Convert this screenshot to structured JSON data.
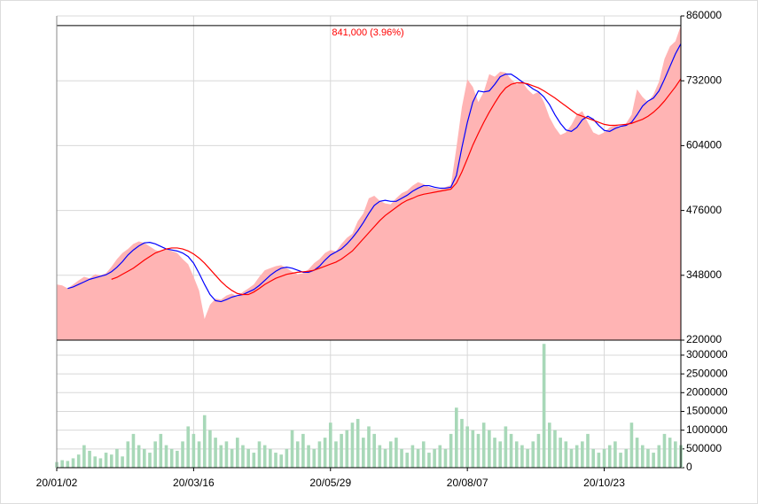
{
  "chart_data": [
    {
      "type": "line",
      "categories": [
        "20/01/02",
        null,
        null,
        null,
        null,
        null,
        null,
        null,
        null,
        null,
        null,
        null,
        null,
        null,
        null,
        null,
        null,
        null,
        null,
        null,
        null,
        null,
        null,
        null,
        null,
        "20/03/16",
        null,
        null,
        null,
        null,
        null,
        null,
        null,
        null,
        null,
        null,
        null,
        null,
        null,
        null,
        null,
        null,
        null,
        null,
        null,
        null,
        null,
        null,
        null,
        null,
        "20/05/29",
        null,
        null,
        null,
        null,
        null,
        null,
        null,
        null,
        null,
        null,
        null,
        null,
        null,
        null,
        null,
        null,
        null,
        null,
        null,
        null,
        null,
        null,
        null,
        null,
        "20/08/07",
        null,
        null,
        null,
        null,
        null,
        null,
        null,
        null,
        null,
        null,
        null,
        null,
        null,
        null,
        null,
        null,
        null,
        null,
        null,
        null,
        null,
        null,
        null,
        null,
        "20/10/23",
        null,
        null,
        null,
        null,
        null,
        null,
        null,
        null,
        null,
        null,
        null,
        null,
        null,
        null
      ],
      "series": [
        {
          "fill": true,
          "color": "#ffb4b4",
          "values": [
            330000,
            328000,
            322000,
            330000,
            338000,
            345000,
            342000,
            350000,
            348000,
            352000,
            365000,
            380000,
            392000,
            400000,
            410000,
            415000,
            412000,
            405000,
            398000,
            395000,
            400000,
            396000,
            392000,
            380000,
            370000,
            345000,
            318000,
            262000,
            290000,
            302000,
            300000,
            308000,
            312000,
            306000,
            315000,
            322000,
            330000,
            345000,
            358000,
            362000,
            366000,
            368000,
            362000,
            355000,
            350000,
            352000,
            360000,
            372000,
            380000,
            392000,
            398000,
            395000,
            410000,
            422000,
            430000,
            455000,
            470000,
            500000,
            505000,
            495000,
            490000,
            488000,
            500000,
            510000,
            515000,
            525000,
            532000,
            528000,
            522000,
            520000,
            518000,
            522000,
            526000,
            600000,
            680000,
            735000,
            720000,
            690000,
            710000,
            745000,
            740000,
            750000,
            748000,
            735000,
            725000,
            730000,
            715000,
            705000,
            710000,
            690000,
            660000,
            640000,
            625000,
            630000,
            645000,
            665000,
            672000,
            650000,
            630000,
            625000,
            630000,
            640000,
            645000,
            640000,
            648000,
            665000,
            715000,
            700000,
            690000,
            705000,
            730000,
            775000,
            800000,
            810000,
            841000
          ]
        },
        {
          "color": "#0000ff",
          "values": [
            null,
            null,
            322000,
            325000,
            330000,
            335000,
            340000,
            343000,
            346000,
            349000,
            355000,
            364000,
            375000,
            388000,
            398000,
            406000,
            412000,
            413000,
            410000,
            405000,
            400000,
            398000,
            396000,
            392000,
            385000,
            372000,
            352000,
            330000,
            310000,
            298000,
            296000,
            300000,
            305000,
            308000,
            310000,
            315000,
            320000,
            328000,
            338000,
            348000,
            356000,
            362000,
            364000,
            362000,
            358000,
            354000,
            354000,
            358000,
            366000,
            378000,
            388000,
            394000,
            400000,
            410000,
            422000,
            436000,
            452000,
            470000,
            486000,
            494000,
            496000,
            494000,
            494000,
            500000,
            506000,
            514000,
            520000,
            525000,
            525000,
            522000,
            520000,
            520000,
            522000,
            545000,
            600000,
            650000,
            690000,
            712000,
            710000,
            712000,
            725000,
            740000,
            745000,
            745000,
            738000,
            730000,
            724000,
            716000,
            710000,
            700000,
            685000,
            665000,
            648000,
            635000,
            632000,
            640000,
            655000,
            662000,
            656000,
            644000,
            634000,
            632000,
            638000,
            642000,
            644000,
            650000,
            665000,
            682000,
            692000,
            698000,
            712000,
            735000,
            760000,
            785000,
            805000
          ]
        },
        {
          "color": "#ff0000",
          "values": [
            null,
            null,
            null,
            null,
            null,
            null,
            null,
            null,
            null,
            null,
            340000,
            344000,
            350000,
            356000,
            362000,
            370000,
            378000,
            385000,
            392000,
            396000,
            400000,
            402000,
            402000,
            400000,
            396000,
            390000,
            382000,
            372000,
            360000,
            348000,
            336000,
            326000,
            318000,
            312000,
            310000,
            310000,
            315000,
            322000,
            330000,
            336000,
            342000,
            346000,
            350000,
            352000,
            354000,
            355000,
            356000,
            358000,
            362000,
            366000,
            370000,
            374000,
            380000,
            388000,
            396000,
            408000,
            420000,
            432000,
            444000,
            456000,
            466000,
            474000,
            482000,
            490000,
            496000,
            500000,
            505000,
            508000,
            510000,
            512000,
            514000,
            516000,
            518000,
            530000,
            552000,
            578000,
            605000,
            628000,
            650000,
            670000,
            688000,
            705000,
            718000,
            725000,
            728000,
            728000,
            726000,
            722000,
            718000,
            712000,
            705000,
            698000,
            690000,
            682000,
            674000,
            666000,
            662000,
            658000,
            654000,
            650000,
            646000,
            644000,
            644000,
            645000,
            646000,
            648000,
            652000,
            656000,
            662000,
            670000,
            680000,
            692000,
            706000,
            720000,
            736000
          ]
        }
      ],
      "ylim": [
        220000,
        860000
      ],
      "yticks": [
        220000,
        348000,
        476000,
        604000,
        732000,
        860000
      ],
      "grid": true,
      "annotation": {
        "text": "841,000 (3.96%)",
        "value": 841000,
        "color": "#ff0000"
      }
    },
    {
      "type": "bar",
      "color": "#a8d8b8",
      "values": [
        150000,
        200000,
        180000,
        250000,
        350000,
        600000,
        450000,
        300000,
        250000,
        400000,
        350000,
        500000,
        300000,
        700000,
        900000,
        600000,
        500000,
        400000,
        700000,
        900000,
        600000,
        500000,
        450000,
        700000,
        1100000,
        900000,
        700000,
        1400000,
        1000000,
        800000,
        600000,
        700000,
        500000,
        800000,
        600000,
        500000,
        400000,
        700000,
        600000,
        500000,
        400000,
        350000,
        500000,
        1000000,
        700000,
        900000,
        600000,
        500000,
        700000,
        800000,
        1200000,
        700000,
        900000,
        1000000,
        1200000,
        1300000,
        800000,
        1100000,
        900000,
        600000,
        500000,
        700000,
        800000,
        500000,
        400000,
        600000,
        500000,
        700000,
        400000,
        500000,
        600000,
        500000,
        900000,
        1600000,
        1300000,
        1100000,
        1000000,
        900000,
        1200000,
        1000000,
        800000,
        700000,
        1100000,
        900000,
        700000,
        600000,
        500000,
        700000,
        900000,
        3300000,
        1200000,
        1000000,
        800000,
        700000,
        500000,
        600000,
        700000,
        900000,
        500000,
        400000,
        500000,
        600000,
        700000,
        400000,
        500000,
        1200000,
        800000,
        600000,
        500000,
        400000,
        600000,
        900000,
        800000,
        700000,
        600000
      ],
      "ylim": [
        0,
        3400000
      ],
      "yticks": [
        0,
        500000,
        1000000,
        1500000,
        2000000,
        2500000,
        3000000
      ],
      "grid": true
    }
  ]
}
